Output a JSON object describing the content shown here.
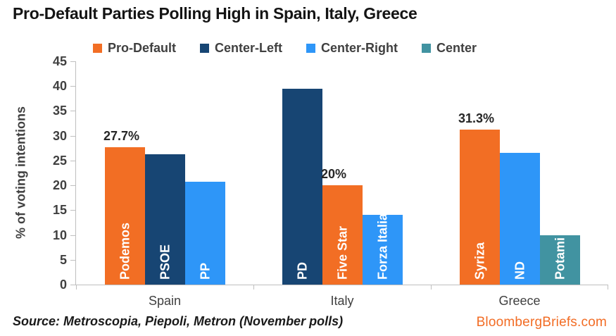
{
  "title": "Pro-Default Parties Polling High in Spain, Italy, Greece",
  "legend": {
    "items": [
      {
        "label": "Pro-Default",
        "color": "#F26E24"
      },
      {
        "label": "Center-Left",
        "color": "#174573"
      },
      {
        "label": "Center-Right",
        "color": "#2E96F8"
      },
      {
        "label": "Center",
        "color": "#4193A1"
      }
    ]
  },
  "colors": {
    "Pro-Default": "#F26E24",
    "Center-Left": "#174573",
    "Center-Right": "#2E96F8",
    "Center": "#4193A1",
    "axis": "#BFBFBF",
    "text": "#404040",
    "accent": "#F26C24"
  },
  "chart_data": {
    "type": "bar",
    "title": "Pro-Default Parties Polling High in Spain, Italy, Greece",
    "xlabel": "",
    "ylabel": "% of voting intentions",
    "ylim": [
      0,
      45
    ],
    "yticks": [
      0,
      5,
      10,
      15,
      20,
      25,
      30,
      35,
      40,
      45
    ],
    "grid": false,
    "legend_position": "top",
    "categories": [
      "Spain",
      "Italy",
      "Greece"
    ],
    "groups": [
      {
        "category": "Spain",
        "bars": [
          {
            "party": "Podemos",
            "series": "Pro-Default",
            "value": 27.7,
            "label": "27.7%"
          },
          {
            "party": "PSOE",
            "series": "Center-Left",
            "value": 26.2
          },
          {
            "party": "PP",
            "series": "Center-Right",
            "value": 20.7
          }
        ]
      },
      {
        "category": "Italy",
        "bars": [
          {
            "party": "PD",
            "series": "Center-Left",
            "value": 39.5
          },
          {
            "party": "Five Star",
            "series": "Pro-Default",
            "value": 20,
            "label": "20%"
          },
          {
            "party": "Forza Italia",
            "series": "Center-Right",
            "value": 14
          }
        ]
      },
      {
        "category": "Greece",
        "bars": [
          {
            "party": "Syriza",
            "series": "Pro-Default",
            "value": 31.3,
            "label": "31.3%"
          },
          {
            "party": "ND",
            "series": "Center-Right",
            "value": 26.5
          },
          {
            "party": "Potami",
            "series": "Center",
            "value": 10
          }
        ]
      }
    ]
  },
  "footer": {
    "source": "Source: Metroscopia, Piepoli, Metron (November polls)",
    "brand": "BloombergBriefs.com"
  }
}
